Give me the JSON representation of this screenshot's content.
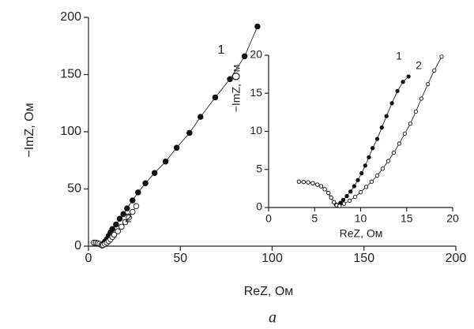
{
  "caption": "a",
  "chart_data": [
    {
      "type": "line",
      "x_label": "ReZ, Ом",
      "y_label": "−ImZ, Ом",
      "xlim": [
        0,
        200
      ],
      "ylim": [
        0,
        200
      ],
      "xticks": [
        0,
        50,
        100,
        150,
        200
      ],
      "yticks": [
        0,
        50,
        100,
        150,
        200
      ],
      "series": [
        {
          "name": "1",
          "color": "#111111",
          "marker": "filled",
          "x": [
            3,
            4,
            5,
            6,
            7,
            8,
            9,
            10,
            11,
            12,
            13,
            15,
            17,
            19,
            21,
            24,
            27,
            31,
            36,
            42,
            48,
            55,
            61,
            69,
            77,
            85,
            92
          ],
          "values": [
            3,
            3,
            2.5,
            2,
            1,
            2,
            4,
            6,
            9,
            12,
            15,
            19,
            24,
            28,
            33,
            40,
            47,
            55,
            64,
            74,
            86,
            99,
            113,
            130,
            146,
            166,
            192
          ]
        },
        {
          "name": "2",
          "color": "#111111",
          "marker": "open",
          "x": [
            3,
            4,
            5,
            6,
            7,
            7.5,
            8,
            9,
            10,
            11,
            12,
            13,
            14,
            16,
            18,
            20,
            22,
            24,
            26
          ],
          "values": [
            3,
            3,
            2.5,
            2,
            1,
            0.5,
            1,
            2,
            3,
            4.5,
            6,
            8,
            10,
            13,
            17,
            21,
            25,
            30,
            35
          ]
        }
      ]
    },
    {
      "type": "line",
      "x_label": "ReZ, Ом",
      "y_label": "−ImZ, Ом",
      "xlim": [
        0,
        20
      ],
      "ylim": [
        0,
        20
      ],
      "xticks": [
        0,
        5,
        10,
        15,
        20
      ],
      "yticks": [
        0,
        5,
        10,
        15,
        20
      ],
      "series": [
        {
          "name": "1",
          "color": "#111111",
          "marker": "filled",
          "x": [
            3.3,
            3.8,
            4.3,
            4.8,
            5.3,
            5.7,
            6.1,
            6.5,
            6.8,
            7.1,
            7.3,
            7.5,
            7.8,
            8.1,
            8.5,
            8.9,
            9.3,
            9.7,
            10.1,
            10.5,
            10.9,
            11.3,
            11.8,
            12.3,
            12.8,
            13.4,
            14.0,
            14.6,
            15.2
          ],
          "values": [
            3.4,
            3.35,
            3.3,
            3.2,
            3.0,
            2.8,
            2.4,
            1.9,
            1.3,
            0.7,
            0.4,
            0.3,
            0.6,
            1.0,
            1.5,
            2.1,
            2.8,
            3.6,
            4.5,
            5.5,
            6.6,
            7.8,
            9.0,
            10.5,
            12.0,
            13.7,
            15.3,
            16.5,
            17.2
          ]
        },
        {
          "name": "2",
          "color": "#111111",
          "marker": "open",
          "x": [
            3.3,
            3.8,
            4.3,
            4.8,
            5.3,
            5.7,
            6.1,
            6.5,
            6.8,
            7.1,
            7.4,
            7.7,
            8.2,
            8.8,
            9.4,
            10,
            10.6,
            11.2,
            11.8,
            12.4,
            13,
            13.6,
            14.2,
            14.8,
            15.4,
            16,
            16.6,
            17.3,
            18,
            18.8
          ],
          "values": [
            3.4,
            3.35,
            3.3,
            3.2,
            3.0,
            2.8,
            2.4,
            1.9,
            1.3,
            0.7,
            0.3,
            0.2,
            0.5,
            0.9,
            1.4,
            2,
            2.7,
            3.4,
            4.2,
            5.1,
            6.1,
            7.2,
            8.4,
            9.7,
            11,
            12.6,
            14.3,
            16.2,
            18,
            19.8
          ]
        }
      ]
    }
  ]
}
